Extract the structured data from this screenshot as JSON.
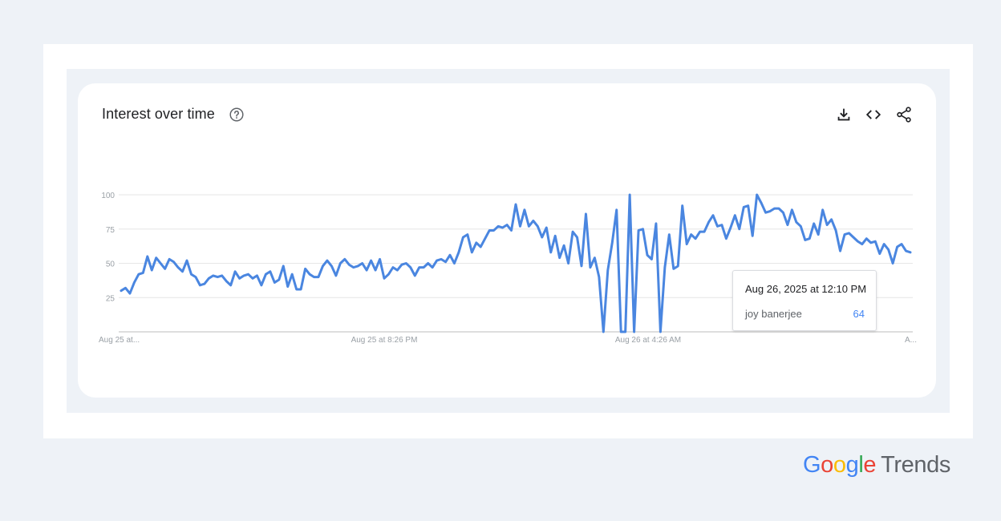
{
  "card": {
    "title": "Interest over time"
  },
  "icons": {
    "help": "help-circle-icon",
    "download": "download-icon",
    "embed": "code-icon",
    "share": "share-icon"
  },
  "colors": {
    "line": "#4a86e0",
    "grid": "#e6e6e6",
    "axis": "#bdbdbd",
    "tick_text": "#9aa0a6",
    "google_blue": "#4285f4",
    "google_red": "#ea4335",
    "google_yellow": "#fbbc05",
    "google_green": "#34a853",
    "trends_gray": "#5f6368"
  },
  "chart_data": {
    "type": "line",
    "title": "",
    "xlabel": "",
    "ylabel": "",
    "ylim": [
      0,
      100
    ],
    "yticks": [
      25,
      50,
      75,
      100
    ],
    "grid": true,
    "xtick_labels": [
      "Aug 25 at...",
      "Aug 25 at 8:26 PM",
      "Aug 26 at 4:26 AM",
      "A..."
    ],
    "series": [
      {
        "name": "joy banerjee",
        "values": [
          30,
          32,
          28,
          36,
          42,
          43,
          55,
          45,
          54,
          50,
          46,
          53,
          51,
          47,
          44,
          52,
          42,
          40,
          34,
          35,
          39,
          41,
          40,
          41,
          37,
          34,
          44,
          39,
          41,
          42,
          39,
          41,
          34,
          42,
          44,
          36,
          38,
          48,
          33,
          42,
          31,
          31,
          46,
          42,
          40,
          40,
          48,
          52,
          48,
          41,
          50,
          53,
          49,
          47,
          48,
          50,
          45,
          52,
          45,
          53,
          39,
          42,
          47,
          45,
          49,
          50,
          47,
          41,
          47,
          47,
          50,
          47,
          52,
          53,
          51,
          56,
          50,
          58,
          69,
          71,
          58,
          65,
          62,
          68,
          74,
          74,
          77,
          76,
          78,
          74,
          93,
          77,
          89,
          77,
          81,
          77,
          69,
          76,
          58,
          70,
          54,
          63,
          50,
          73,
          69,
          48,
          86,
          47,
          54,
          40,
          0,
          45,
          65,
          89,
          0,
          0,
          100,
          0,
          74,
          75,
          56,
          53,
          79,
          0,
          47,
          71,
          46,
          48,
          92,
          64,
          71,
          68,
          73,
          73,
          80,
          85,
          77,
          78,
          68,
          76,
          85,
          75,
          91,
          92,
          70,
          100,
          94,
          87,
          88,
          90,
          90,
          87,
          78,
          89,
          80,
          77,
          67,
          68,
          79,
          71,
          89,
          78,
          82,
          74,
          59,
          71,
          72,
          69,
          66,
          64,
          68,
          65,
          66,
          57,
          64,
          60,
          50,
          62,
          64,
          59,
          58
        ]
      }
    ],
    "tooltip": {
      "date": "Aug 26, 2025 at 12:10 PM",
      "series": "joy banerjee",
      "value": 64
    }
  },
  "logo": {
    "google": "Google",
    "trends": "Trends"
  }
}
